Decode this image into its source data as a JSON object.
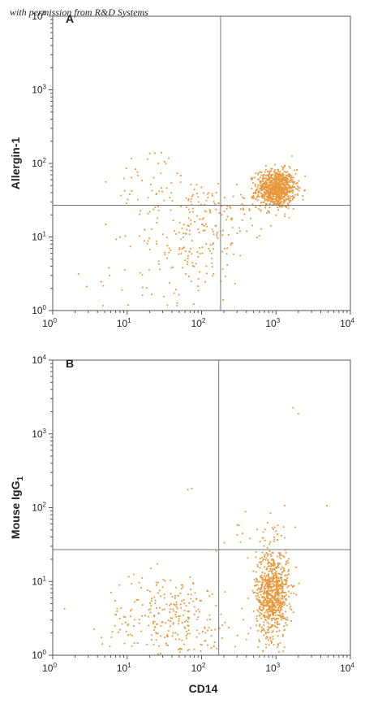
{
  "watermark": "with permission from R&D Systems",
  "colors": {
    "points": "#E8963A",
    "frame": "#555555",
    "quadrant": "#777777"
  },
  "chart_data": [
    {
      "type": "scatter",
      "panel": "A",
      "xlabel": "",
      "ylabel": "Allergin-1",
      "xscale": "log",
      "yscale": "log",
      "xlim": [
        1,
        10000
      ],
      "ylim": [
        1,
        10000
      ],
      "xticks": [
        "10",
        "10",
        "10",
        "10",
        "10"
      ],
      "xtick_exponents": [
        "0",
        "1",
        "2",
        "3",
        "4"
      ],
      "yticks": [
        "10",
        "10",
        "10",
        "10",
        "10"
      ],
      "ytick_exponents": [
        "0",
        "1",
        "2",
        "3",
        "4"
      ],
      "quadrant_gate": {
        "x": 180,
        "y": 27
      },
      "grid": false,
      "populations": [
        {
          "count": 900,
          "center": [
            1000,
            45
          ],
          "spread": [
            0.13,
            0.13
          ]
        },
        {
          "count": 200,
          "center": [
            80,
            12
          ],
          "spread": [
            0.38,
            0.38
          ]
        },
        {
          "count": 30,
          "center": [
            20,
            60
          ],
          "spread": [
            0.22,
            0.22
          ]
        },
        {
          "count": 40,
          "center": [
            30,
            3
          ],
          "spread": [
            0.5,
            0.3
          ]
        },
        {
          "count": 40,
          "center": [
            250,
            25
          ],
          "spread": [
            0.3,
            0.15
          ]
        }
      ]
    },
    {
      "type": "scatter",
      "panel": "B",
      "xlabel": "CD14",
      "ylabel": "Mouse IgG",
      "ylabel_subscript": "1",
      "xscale": "log",
      "yscale": "log",
      "xlim": [
        1,
        10000
      ],
      "ylim": [
        1,
        10000
      ],
      "xticks": [
        "10",
        "10",
        "10",
        "10",
        "10"
      ],
      "xtick_exponents": [
        "0",
        "1",
        "2",
        "3",
        "4"
      ],
      "yticks": [
        "10",
        "10",
        "10",
        "10",
        "10"
      ],
      "ytick_exponents": [
        "0",
        "1",
        "2",
        "3",
        "4"
      ],
      "quadrant_gate": {
        "x": 170,
        "y": 27
      },
      "grid": false,
      "populations": [
        {
          "count": 800,
          "center": [
            900,
            7
          ],
          "spread": [
            0.11,
            0.3
          ]
        },
        {
          "count": 300,
          "center": [
            40,
            3
          ],
          "spread": [
            0.45,
            0.32
          ]
        },
        {
          "count": 25,
          "center": [
            600,
            50
          ],
          "spread": [
            0.25,
            0.15
          ]
        },
        {
          "count": 2,
          "center": [
            1600,
            2000
          ],
          "spread": [
            0.05,
            0.05
          ]
        },
        {
          "count": 2,
          "center": [
            70,
            200
          ],
          "spread": [
            0.05,
            0.05
          ]
        }
      ]
    }
  ]
}
